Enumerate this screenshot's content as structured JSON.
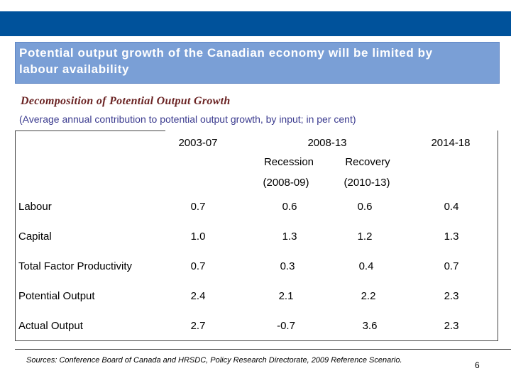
{
  "slide": {
    "banner_title": "Potential output growth of the Canadian economy will be limited by labour availability",
    "subtitle": "Decomposition of Potential Output Growth",
    "note": "(Average annual contribution to potential output growth, by input; in per cent)",
    "sources": "Sources: Conference Board of Canada and HRSDC, Policy Research Directorate, 2009 Reference Scenario.",
    "page_number": "6"
  },
  "colors": {
    "top_bar": "#00529b",
    "banner": "#7a9fd6",
    "subtitle": "#6b2424",
    "note": "#3b3b8f"
  },
  "table": {
    "headers": {
      "period1": "2003-07",
      "period2": "2008-13",
      "recession": "Recession",
      "recovery": "Recovery",
      "recession_years": "(2008-09)",
      "recovery_years": "(2010-13)",
      "period3": "2014-18"
    },
    "rows": [
      {
        "label": "Labour",
        "values": [
          "0.7",
          "0.6",
          "0.6",
          "0.4"
        ]
      },
      {
        "label": "Capital",
        "values": [
          "1.0",
          "1.3",
          "1.2",
          "1.3"
        ]
      },
      {
        "label": "Total Factor Productivity",
        "values": [
          "0.7",
          "0.3",
          "0.4",
          "0.7"
        ]
      },
      {
        "label": "Potential Output",
        "values": [
          "2.4",
          "2.1",
          "2.2",
          "2.3"
        ]
      },
      {
        "label": "Actual Output",
        "values": [
          "2.7",
          "-0.7",
          "3.6",
          "2.3"
        ]
      }
    ]
  }
}
